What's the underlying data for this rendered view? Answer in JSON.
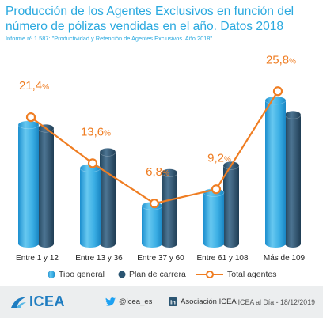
{
  "title": "Producción de los Agentes Exclusivos en función del número de pólizas vendidas en el año. Datos 2018",
  "subtitle": "Informe nº 1.587: \"Productividad y Retención de Agentes Exclusivos. Año 2018\"",
  "chart_data": {
    "type": "bar",
    "categories": [
      "Entre 1 y 12",
      "Entre 13 y 36",
      "Entre 37 y 60",
      "Entre 61 y 108",
      "Más de 109"
    ],
    "series": [
      {
        "name": "Tipo general",
        "type": "bar",
        "color": "#3fb0e5"
      },
      {
        "name": "Plan de carrera",
        "type": "bar",
        "color": "#2b5572"
      },
      {
        "name": "Total agentes",
        "type": "line",
        "color": "#ef7d22",
        "values": [
          21.4,
          13.6,
          6.8,
          9.2,
          25.8
        ]
      }
    ],
    "data_labels": [
      {
        "value": "21,4",
        "unit": "%"
      },
      {
        "value": "13,6",
        "unit": "%"
      },
      {
        "value": "6,8",
        "unit": "%"
      },
      {
        "value": "9,2",
        "unit": "%"
      },
      {
        "value": "25,8",
        "unit": "%"
      }
    ],
    "grid": false,
    "legend_position": "bottom"
  },
  "legend": [
    {
      "label": "Tipo general"
    },
    {
      "label": "Plan de carrera"
    },
    {
      "label": "Total agentes"
    }
  ],
  "footer": {
    "logo_text": "ICEA",
    "twitter": "@icea_es",
    "linkedin": "Asociación ICEA",
    "date": "ICEA al Día - 18/12/2019"
  },
  "colors": {
    "light_blue": "#3fb0e5",
    "dark_blue": "#2b5572",
    "orange": "#ef7d22",
    "title_blue": "#2aa9df"
  }
}
